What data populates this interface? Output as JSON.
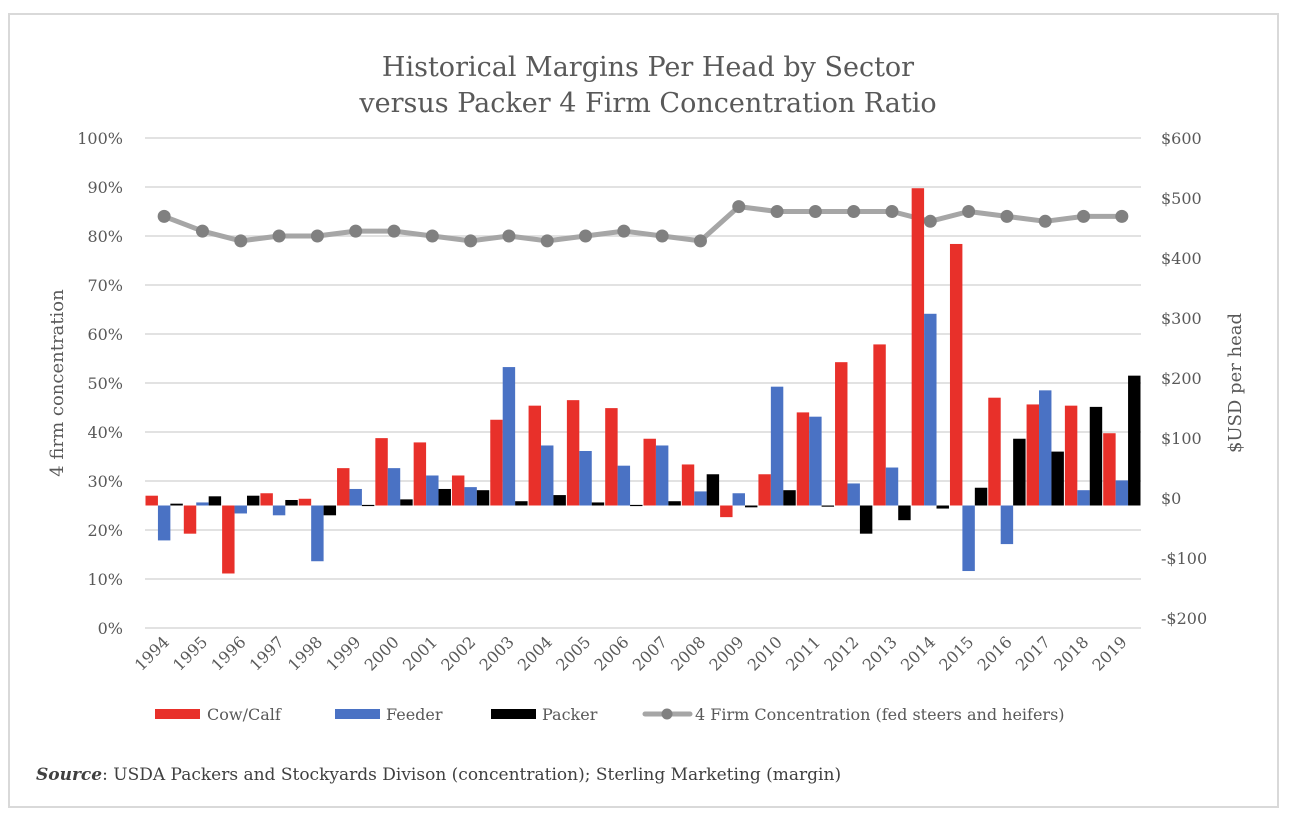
{
  "chart_data": {
    "type": "bar",
    "title": [
      "Historical Margins Per Head by Sector",
      "versus Packer 4 Firm Concentration Ratio"
    ],
    "categories": [
      "1994",
      "1995",
      "1996",
      "1997",
      "1998",
      "1999",
      "2000",
      "2001",
      "2002",
      "2003",
      "2004",
      "2005",
      "2006",
      "2007",
      "2008",
      "2009",
      "2010",
      "2011",
      "2012",
      "2013",
      "2014",
      "2015",
      "2016",
      "2017",
      "2018",
      "2019"
    ],
    "series": [
      {
        "name": "Cow/Calf",
        "type": "bar",
        "axis": "right",
        "color": "#e8302a",
        "values": [
          16,
          -46,
          -111,
          20,
          11,
          61,
          110,
          103,
          49,
          140,
          163,
          172,
          159,
          109,
          67,
          -19,
          51,
          152,
          234,
          263,
          518,
          427,
          176,
          165,
          163,
          118
        ]
      },
      {
        "name": "Feeder",
        "type": "bar",
        "axis": "right",
        "color": "#4a72c4",
        "values": [
          -57,
          5,
          -13,
          -16,
          -91,
          27,
          61,
          49,
          30,
          226,
          98,
          89,
          65,
          98,
          23,
          20,
          194,
          145,
          36,
          62,
          313,
          -107,
          -63,
          188,
          25,
          41
        ]
      },
      {
        "name": "Packer",
        "type": "bar",
        "axis": "right",
        "color": "#000000",
        "values": [
          3,
          15,
          16,
          9,
          -16,
          1,
          10,
          27,
          25,
          7,
          17,
          5,
          1,
          7,
          51,
          -3,
          25,
          0,
          -46,
          -24,
          -5,
          29,
          109,
          88,
          161,
          212
        ]
      },
      {
        "name": "4 Firm Concentration (fed steers and heifers)",
        "type": "line",
        "axis": "left",
        "color": "#a6a6a6",
        "marker_color": "#808080",
        "values": [
          84,
          81,
          79,
          80,
          80,
          81,
          81,
          80,
          79,
          80,
          79,
          80,
          81,
          80,
          79,
          86,
          85,
          85,
          85,
          85,
          83,
          85,
          84,
          83,
          84,
          84
        ]
      }
    ],
    "ylabel": "4 firm concentration",
    "ylim": [
      0,
      100
    ],
    "yticks": [
      "0%",
      "10%",
      "20%",
      "30%",
      "40%",
      "50%",
      "60%",
      "70%",
      "80%",
      "90%",
      "100%"
    ],
    "y2label": "$USD per head",
    "y2lim": [
      -200,
      600
    ],
    "y2ticks": [
      "-$200",
      "-$100",
      "$0",
      "$100",
      "$200",
      "$300",
      "$400",
      "$500",
      "$600"
    ],
    "xlabel": "",
    "grid": true,
    "legend": {
      "placement": "bottom",
      "entries": [
        "Cow/Calf",
        "Feeder",
        "Packer",
        "4 Firm Concentration (fed steers and heifers)"
      ]
    }
  },
  "source_note": {
    "label": "Source",
    "text": ": USDA Packers and Stockyards Divison (concentration); Sterling Marketing (margin)"
  }
}
